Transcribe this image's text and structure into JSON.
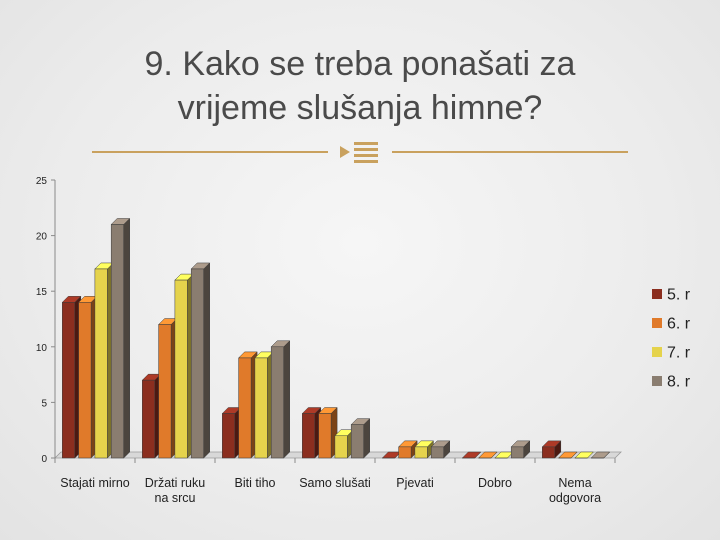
{
  "title": {
    "line1": "9. Kako se treba ponašati za",
    "line2": "vrijeme slušanja himne?"
  },
  "icons": {
    "ornament": "paragraph-ornament-icon"
  },
  "colors": {
    "background": "#ececec",
    "rule": "#c9a15e",
    "series": [
      "#8b2e1f",
      "#e07a2a",
      "#e5d34c",
      "#8a7d70"
    ]
  },
  "chart_data": {
    "type": "bar",
    "title": "",
    "xlabel": "",
    "ylabel": "",
    "ylim": [
      0,
      25
    ],
    "yticks": [
      0,
      5,
      10,
      15,
      20,
      25
    ],
    "grid": false,
    "legend_position": "right",
    "categories": [
      [
        "Stajati mirno"
      ],
      [
        "Držati ruku",
        "na srcu"
      ],
      [
        "Biti tiho"
      ],
      [
        "Samo slušati"
      ],
      [
        "Pjevati"
      ],
      [
        "Dobro"
      ],
      [
        "Nema",
        "odgovora"
      ]
    ],
    "series": [
      {
        "name": "5. r",
        "values": [
          14,
          7,
          4,
          4,
          0,
          0,
          1
        ]
      },
      {
        "name": "6. r",
        "values": [
          14,
          12,
          9,
          4,
          1,
          0,
          0
        ]
      },
      {
        "name": "7. r",
        "values": [
          17,
          16,
          9,
          2,
          1,
          0,
          0
        ]
      },
      {
        "name": "8. r",
        "values": [
          21,
          17,
          10,
          3,
          1,
          1,
          0
        ]
      }
    ]
  }
}
